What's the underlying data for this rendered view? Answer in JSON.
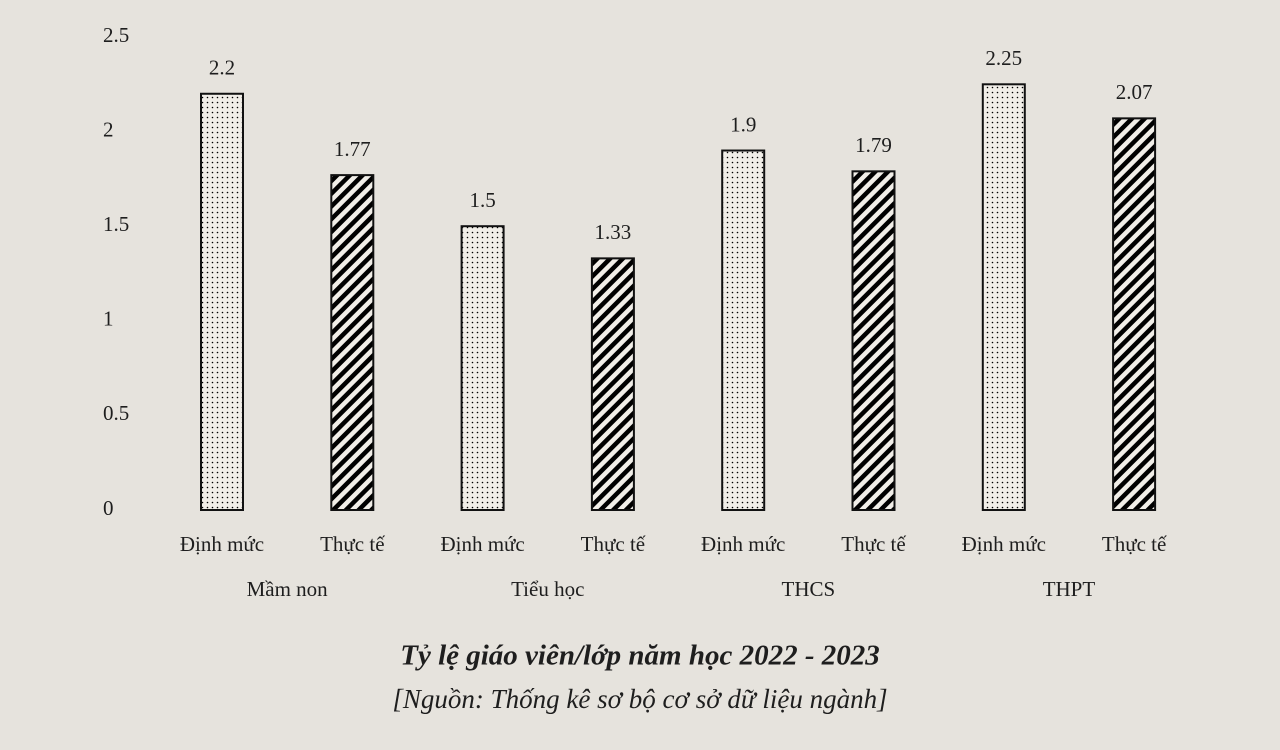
{
  "chart_data": {
    "type": "bar",
    "title": "Tỷ lệ giáo viên/lớp năm học 2022 - 2023",
    "subtitle": "[Nguồn: Thống kê sơ bộ cơ sở dữ liệu ngành]",
    "categories": [
      "Mầm non",
      "Tiểu học",
      "THCS",
      "THPT"
    ],
    "series": [
      {
        "name": "Định mức",
        "color": "#444444",
        "pattern": "dots",
        "values": [
          2.2,
          1.5,
          1.9,
          2.25
        ]
      },
      {
        "name": "Thực tế",
        "color": "#1a1a1a",
        "pattern": "hatch",
        "values": [
          1.77,
          1.33,
          1.79,
          2.07
        ]
      }
    ],
    "ylim": [
      0,
      2.5
    ],
    "yticks": [
      0,
      0.5,
      1,
      1.5,
      2,
      2.5
    ],
    "grid": false
  }
}
